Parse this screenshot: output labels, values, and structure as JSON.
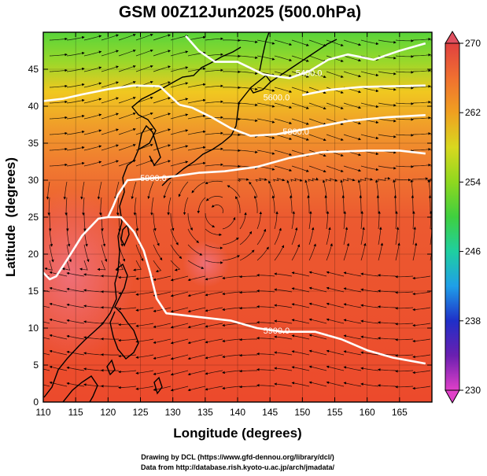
{
  "chart_data": {
    "type": "contour-map",
    "title": "GSM 00Z12Jun2025 (500.0hPa)",
    "xlabel": "Longitude (degrees)",
    "ylabel": "Latitude  (degrees)",
    "xlim": [
      110,
      170
    ],
    "ylim": [
      0,
      50
    ],
    "x_ticks": [
      "110",
      "115",
      "120",
      "125",
      "130",
      "135",
      "140",
      "145",
      "150",
      "155",
      "160",
      "165"
    ],
    "y_ticks": [
      "0",
      "5",
      "10",
      "15",
      "20",
      "25",
      "30",
      "35",
      "40",
      "45"
    ],
    "colorbar": {
      "min": 230,
      "max": 270,
      "tick_labels": [
        "230",
        "238",
        "246",
        "254",
        "262",
        "270"
      ],
      "colors": [
        "#e040c8",
        "#6a1fb0",
        "#1f2fc8",
        "#1f9fe8",
        "#1fcfa0",
        "#3fcf3f",
        "#8fd81f",
        "#d8d81f",
        "#f0a020",
        "#f07030",
        "#e04040"
      ]
    },
    "contour_labels": [
      "5900.0",
      "5900.0",
      "5800.0",
      "5600.0",
      "5400.0"
    ],
    "contours": [
      {
        "level": "5900.0",
        "points": [
          [
            110,
            17.5
          ],
          [
            111,
            16.6
          ],
          [
            112,
            17
          ],
          [
            113.5,
            19
          ],
          [
            116,
            22.5
          ],
          [
            118.5,
            24.8
          ],
          [
            120,
            25
          ],
          [
            120.8,
            26.5
          ],
          [
            121.5,
            28
          ],
          [
            123,
            30
          ],
          [
            126,
            30.2
          ],
          [
            130,
            30.5
          ],
          [
            134,
            31
          ],
          [
            138,
            31.2
          ],
          [
            143,
            31.8
          ],
          [
            148,
            33
          ],
          [
            153,
            33.8
          ],
          [
            160,
            34
          ],
          [
            165,
            34
          ],
          [
            169,
            33.6
          ]
        ]
      },
      {
        "level": "5900.0",
        "points": [
          [
            120,
            25
          ],
          [
            122,
            25
          ],
          [
            124,
            23
          ],
          [
            125.5,
            20.5
          ],
          [
            126.5,
            17.5
          ],
          [
            127.5,
            14
          ],
          [
            129,
            12
          ],
          [
            134,
            11.5
          ],
          [
            139,
            11
          ],
          [
            143,
            10
          ],
          [
            147,
            9.5
          ],
          [
            152,
            9.5
          ],
          [
            156,
            8.5
          ],
          [
            160,
            7
          ],
          [
            164,
            6
          ],
          [
            169,
            5.2
          ]
        ]
      },
      {
        "level": "5800.0",
        "points": [
          [
            131,
            40.2
          ],
          [
            133,
            39.8
          ],
          [
            136,
            38.5
          ],
          [
            139,
            37
          ],
          [
            142,
            36
          ],
          [
            146,
            36.2
          ],
          [
            151,
            37
          ],
          [
            157,
            38
          ],
          [
            163,
            38.5
          ],
          [
            169,
            38.8
          ]
        ]
      },
      {
        "level": "5600.0",
        "points": [
          [
            110,
            40.7
          ],
          [
            113,
            41
          ],
          [
            116,
            41.6
          ],
          [
            120,
            42.3
          ],
          [
            124,
            42.8
          ],
          [
            128,
            42.7
          ],
          [
            131,
            40.2
          ]
        ]
      },
      {
        "level": "5600.0",
        "points": [
          [
            150,
            41.5
          ],
          [
            154,
            42.2
          ],
          [
            159,
            42.6
          ],
          [
            164,
            42.7
          ],
          [
            169,
            42.8
          ]
        ]
      },
      {
        "level": "5400.0",
        "points": [
          [
            132,
            49.5
          ],
          [
            134,
            47.5
          ],
          [
            136.5,
            46
          ],
          [
            140,
            46
          ],
          [
            144,
            44.3
          ],
          [
            148,
            43.8
          ],
          [
            151,
            44.7
          ],
          [
            154,
            46.3
          ],
          [
            157,
            47
          ],
          [
            161,
            46.3
          ],
          [
            165,
            47.5
          ],
          [
            169,
            48.5
          ]
        ]
      }
    ]
  },
  "credits": {
    "line1": "Drawing by DCL (https://www.gfd-dennou.org/library/dcl/)",
    "line2": "Data from http://database.rish.kyoto-u.ac.jp/arch/jmadata/"
  }
}
